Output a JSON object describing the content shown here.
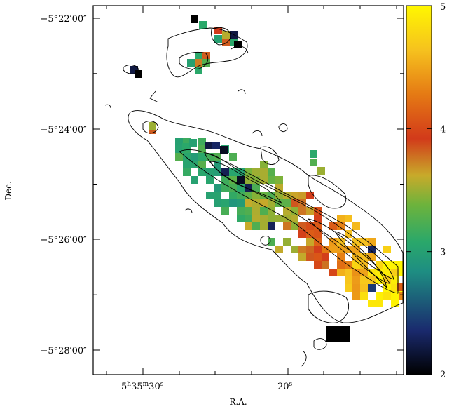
{
  "chart_data": {
    "type": "heatmap",
    "title": "",
    "xlabel": "R.A.",
    "ylabel": "Dec.",
    "x_ticks": [
      {
        "label_h": "5",
        "label_m": "35",
        "label_s": "30",
        "ra_sec": 30
      },
      {
        "label_h": "",
        "label_m": "",
        "label_s": "20",
        "ra_sec": 20
      }
    ],
    "y_ticks": [
      {
        "label": "−5°22′00″",
        "dec_arcmin": -22
      },
      {
        "label": "−5°24′00″",
        "dec_arcmin": -24
      },
      {
        "label": "−5°26′00″",
        "dec_arcmin": -26
      },
      {
        "label": "−5°28′00″",
        "dec_arcmin": -28
      }
    ],
    "colorbar": {
      "min": 2,
      "max": 5,
      "tick_labels": [
        "2",
        "3",
        "4",
        "5"
      ],
      "tick_values": [
        2,
        3,
        4,
        5
      ],
      "colormap": [
        "#000000",
        "#1a2a6e",
        "#1e8e82",
        "#2aa86a",
        "#6db33c",
        "#c8aa2a",
        "#d23a1a",
        "#e57a14",
        "#f6c21e",
        "#fff700"
      ]
    },
    "colors": {
      "contour": "#000000",
      "frame": "#000000",
      "background": "#ffffff"
    }
  }
}
